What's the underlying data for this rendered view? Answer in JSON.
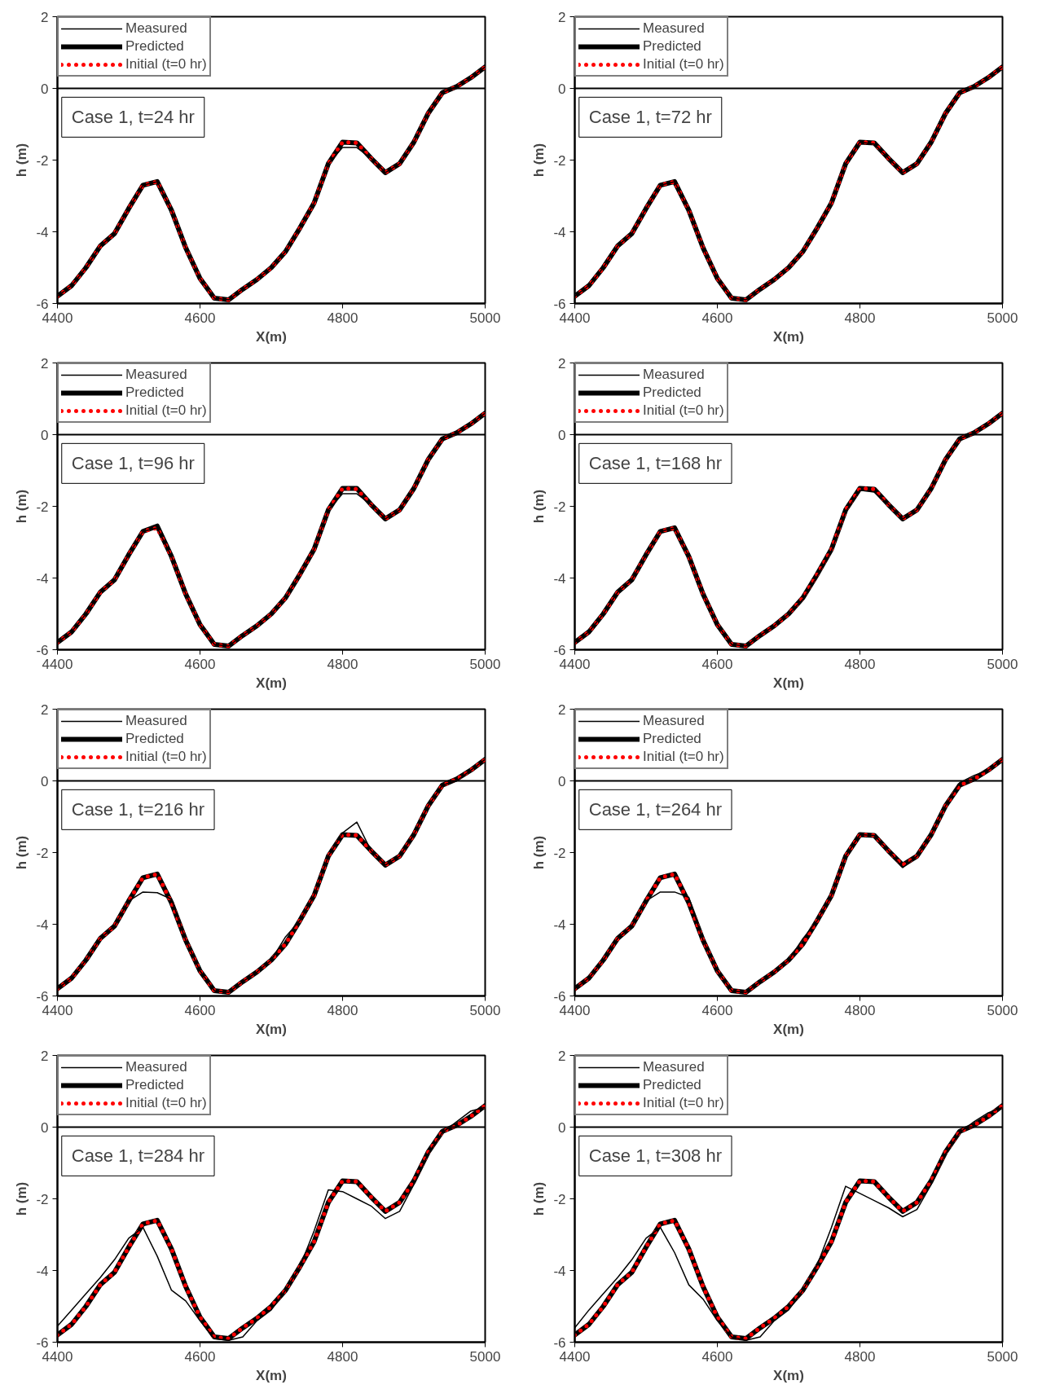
{
  "chart_data": [
    {
      "type": "line",
      "annotations": [
        "Case 1, t=24 hr"
      ],
      "xlabel": "X(m)",
      "ylabel": "h (m)",
      "xlim": [
        4400,
        5000
      ],
      "ylim": [
        -6,
        2
      ],
      "xticks": [
        4400,
        4600,
        4800,
        5000
      ],
      "yticks": [
        -6,
        -4,
        -2,
        0,
        2
      ],
      "grid": false,
      "legend": "top left",
      "ref_lines": [
        {
          "axis": "y",
          "value": 0,
          "color": "#000000"
        }
      ],
      "x": [
        4400,
        4420,
        4440,
        4460,
        4480,
        4500,
        4520,
        4540,
        4560,
        4580,
        4600,
        4620,
        4640,
        4660,
        4680,
        4700,
        4720,
        4740,
        4760,
        4780,
        4800,
        4820,
        4840,
        4860,
        4880,
        4900,
        4920,
        4940,
        4960,
        4980,
        5000
      ],
      "series": [
        {
          "name": "Measured",
          "color": "#000000",
          "line_style": "solid",
          "values": [
            -5.8,
            -5.5,
            -5.0,
            -4.4,
            -4.05,
            -3.35,
            -2.7,
            -2.6,
            -3.4,
            -4.45,
            -5.3,
            -5.85,
            -5.9,
            -5.6,
            -5.33,
            -5.0,
            -4.55,
            -3.9,
            -3.2,
            -2.1,
            -1.65,
            -1.65,
            -1.95,
            -2.35,
            -2.1,
            -1.5,
            -0.7,
            -0.12,
            0.05,
            0.3,
            0.6
          ]
        },
        {
          "name": "Predicted",
          "color": "#000000",
          "line_style": "solid",
          "values": [
            -5.8,
            -5.5,
            -5.0,
            -4.4,
            -4.05,
            -3.35,
            -2.7,
            -2.6,
            -3.4,
            -4.45,
            -5.3,
            -5.85,
            -5.9,
            -5.6,
            -5.33,
            -5.0,
            -4.55,
            -3.9,
            -3.2,
            -2.1,
            -1.5,
            -1.52,
            -1.95,
            -2.35,
            -2.1,
            -1.5,
            -0.7,
            -0.12,
            0.05,
            0.3,
            0.6
          ]
        },
        {
          "name": "Initial (t=0 hr)",
          "color": "#ff0000",
          "line_style": "dotted",
          "values": [
            -5.8,
            -5.5,
            -5.0,
            -4.4,
            -4.05,
            -3.35,
            -2.7,
            -2.6,
            -3.4,
            -4.45,
            -5.3,
            -5.85,
            -5.9,
            -5.6,
            -5.33,
            -5.0,
            -4.55,
            -3.9,
            -3.2,
            -2.1,
            -1.5,
            -1.52,
            -1.95,
            -2.35,
            -2.1,
            -1.5,
            -0.7,
            -0.12,
            0.05,
            0.3,
            0.6
          ]
        }
      ]
    },
    {
      "type": "line",
      "annotations": [
        "Case 1, t=72 hr"
      ],
      "xlabel": "X(m)",
      "ylabel": "h (m)",
      "xlim": [
        4400,
        5000
      ],
      "ylim": [
        -6,
        2
      ],
      "xticks": [
        4400,
        4600,
        4800,
        5000
      ],
      "yticks": [
        -6,
        -4,
        -2,
        0,
        2
      ],
      "grid": false,
      "legend": "top left",
      "ref_lines": [
        {
          "axis": "y",
          "value": 0,
          "color": "#000000"
        }
      ],
      "x": [
        4400,
        4420,
        4440,
        4460,
        4480,
        4500,
        4520,
        4540,
        4560,
        4580,
        4600,
        4620,
        4640,
        4660,
        4680,
        4700,
        4720,
        4740,
        4760,
        4780,
        4800,
        4820,
        4840,
        4860,
        4880,
        4900,
        4920,
        4940,
        4960,
        4980,
        5000
      ],
      "series": [
        {
          "name": "Measured",
          "color": "#000000",
          "line_style": "solid",
          "values": [
            -5.8,
            -5.5,
            -5.0,
            -4.4,
            -4.05,
            -3.35,
            -2.7,
            -2.6,
            -3.4,
            -4.45,
            -5.3,
            -5.85,
            -5.9,
            -5.6,
            -5.33,
            -5.0,
            -4.55,
            -3.9,
            -3.2,
            -2.1,
            -1.5,
            -1.55,
            -1.95,
            -2.35,
            -2.1,
            -1.5,
            -0.7,
            -0.12,
            0.05,
            0.3,
            0.6
          ]
        },
        {
          "name": "Predicted",
          "color": "#000000",
          "line_style": "solid",
          "values": [
            -5.8,
            -5.5,
            -5.0,
            -4.4,
            -4.05,
            -3.35,
            -2.7,
            -2.6,
            -3.4,
            -4.45,
            -5.3,
            -5.85,
            -5.9,
            -5.6,
            -5.33,
            -5.0,
            -4.55,
            -3.9,
            -3.2,
            -2.1,
            -1.5,
            -1.52,
            -1.95,
            -2.35,
            -2.1,
            -1.5,
            -0.7,
            -0.12,
            0.05,
            0.3,
            0.6
          ]
        },
        {
          "name": "Initial (t=0 hr)",
          "color": "#ff0000",
          "line_style": "dotted",
          "values": [
            -5.8,
            -5.5,
            -5.0,
            -4.4,
            -4.05,
            -3.35,
            -2.7,
            -2.6,
            -3.4,
            -4.45,
            -5.3,
            -5.85,
            -5.9,
            -5.6,
            -5.33,
            -5.0,
            -4.55,
            -3.9,
            -3.2,
            -2.1,
            -1.5,
            -1.52,
            -1.95,
            -2.35,
            -2.1,
            -1.5,
            -0.7,
            -0.12,
            0.05,
            0.3,
            0.6
          ]
        }
      ]
    },
    {
      "type": "line",
      "annotations": [
        "Case 1, t=96 hr"
      ],
      "xlabel": "X(m)",
      "ylabel": "h (m)",
      "xlim": [
        4400,
        5000
      ],
      "ylim": [
        -6,
        2
      ],
      "xticks": [
        4400,
        4600,
        4800,
        5000
      ],
      "yticks": [
        -6,
        -4,
        -2,
        0,
        2
      ],
      "grid": false,
      "legend": "top left",
      "ref_lines": [
        {
          "axis": "y",
          "value": 0,
          "color": "#000000"
        }
      ],
      "x": [
        4400,
        4420,
        4440,
        4460,
        4480,
        4500,
        4520,
        4540,
        4560,
        4580,
        4600,
        4620,
        4640,
        4660,
        4680,
        4700,
        4720,
        4740,
        4760,
        4780,
        4800,
        4820,
        4840,
        4860,
        4880,
        4900,
        4920,
        4940,
        4960,
        4980,
        5000
      ],
      "series": [
        {
          "name": "Measured",
          "color": "#000000",
          "line_style": "solid",
          "values": [
            -5.8,
            -5.5,
            -5.0,
            -4.4,
            -4.05,
            -3.35,
            -2.7,
            -2.6,
            -3.4,
            -4.45,
            -5.3,
            -5.85,
            -5.9,
            -5.6,
            -5.33,
            -5.0,
            -4.55,
            -3.9,
            -3.2,
            -2.1,
            -1.65,
            -1.65,
            -1.95,
            -2.35,
            -2.1,
            -1.5,
            -0.7,
            -0.12,
            0.05,
            0.3,
            0.6
          ]
        },
        {
          "name": "Predicted",
          "color": "#000000",
          "line_style": "solid",
          "values": [
            -5.8,
            -5.5,
            -5.0,
            -4.4,
            -4.05,
            -3.35,
            -2.7,
            -2.55,
            -3.4,
            -4.45,
            -5.3,
            -5.85,
            -5.9,
            -5.6,
            -5.33,
            -5.0,
            -4.55,
            -3.9,
            -3.2,
            -2.1,
            -1.5,
            -1.5,
            -1.95,
            -2.35,
            -2.1,
            -1.5,
            -0.7,
            -0.12,
            0.05,
            0.3,
            0.6
          ]
        },
        {
          "name": "Initial (t=0 hr)",
          "color": "#ff0000",
          "line_style": "dotted",
          "values": [
            -5.8,
            -5.5,
            -5.0,
            -4.4,
            -4.05,
            -3.35,
            -2.7,
            -2.6,
            -3.4,
            -4.45,
            -5.3,
            -5.85,
            -5.9,
            -5.6,
            -5.33,
            -5.0,
            -4.55,
            -3.9,
            -3.2,
            -2.1,
            -1.5,
            -1.52,
            -1.95,
            -2.35,
            -2.1,
            -1.5,
            -0.7,
            -0.12,
            0.05,
            0.3,
            0.6
          ]
        }
      ]
    },
    {
      "type": "line",
      "annotations": [
        "Case 1, t=168 hr"
      ],
      "xlabel": "X(m)",
      "ylabel": "h (m)",
      "xlim": [
        4400,
        5000
      ],
      "ylim": [
        -6,
        2
      ],
      "xticks": [
        4400,
        4600,
        4800,
        5000
      ],
      "yticks": [
        -6,
        -4,
        -2,
        0,
        2
      ],
      "grid": false,
      "legend": "top left",
      "ref_lines": [
        {
          "axis": "y",
          "value": 0,
          "color": "#000000"
        }
      ],
      "x": [
        4400,
        4420,
        4440,
        4460,
        4480,
        4500,
        4520,
        4540,
        4560,
        4580,
        4600,
        4620,
        4640,
        4660,
        4680,
        4700,
        4720,
        4740,
        4760,
        4780,
        4800,
        4820,
        4840,
        4860,
        4880,
        4900,
        4920,
        4940,
        4960,
        4980,
        5000
      ],
      "series": [
        {
          "name": "Measured",
          "color": "#000000",
          "line_style": "solid",
          "values": [
            -5.8,
            -5.5,
            -5.0,
            -4.4,
            -4.05,
            -3.35,
            -2.7,
            -2.6,
            -3.4,
            -4.45,
            -5.3,
            -5.85,
            -5.9,
            -5.6,
            -5.33,
            -5.0,
            -4.6,
            -3.95,
            -3.25,
            -2.15,
            -1.55,
            -1.6,
            -1.95,
            -2.35,
            -2.1,
            -1.5,
            -0.7,
            -0.12,
            0.05,
            0.3,
            0.6
          ]
        },
        {
          "name": "Predicted",
          "color": "#000000",
          "line_style": "solid",
          "values": [
            -5.8,
            -5.5,
            -5.0,
            -4.4,
            -4.05,
            -3.35,
            -2.7,
            -2.6,
            -3.4,
            -4.45,
            -5.3,
            -5.85,
            -5.9,
            -5.6,
            -5.33,
            -5.0,
            -4.55,
            -3.9,
            -3.2,
            -2.1,
            -1.5,
            -1.52,
            -1.95,
            -2.35,
            -2.1,
            -1.5,
            -0.7,
            -0.12,
            0.05,
            0.3,
            0.6
          ]
        },
        {
          "name": "Initial (t=0 hr)",
          "color": "#ff0000",
          "line_style": "dotted",
          "values": [
            -5.8,
            -5.5,
            -5.0,
            -4.4,
            -4.05,
            -3.35,
            -2.7,
            -2.6,
            -3.4,
            -4.45,
            -5.3,
            -5.85,
            -5.9,
            -5.6,
            -5.33,
            -5.0,
            -4.55,
            -3.9,
            -3.2,
            -2.1,
            -1.5,
            -1.52,
            -1.95,
            -2.35,
            -2.1,
            -1.5,
            -0.7,
            -0.12,
            0.05,
            0.3,
            0.6
          ]
        }
      ]
    },
    {
      "type": "line",
      "annotations": [
        "Case 1, t=216 hr"
      ],
      "xlabel": "X(m)",
      "ylabel": "h (m)",
      "xlim": [
        4400,
        5000
      ],
      "ylim": [
        -6,
        2
      ],
      "xticks": [
        4400,
        4600,
        4800,
        5000
      ],
      "yticks": [
        -6,
        -4,
        -2,
        0,
        2
      ],
      "grid": false,
      "legend": "top left",
      "ref_lines": [
        {
          "axis": "y",
          "value": 0,
          "color": "#000000"
        }
      ],
      "x": [
        4400,
        4420,
        4440,
        4460,
        4480,
        4500,
        4520,
        4540,
        4560,
        4580,
        4600,
        4620,
        4640,
        4660,
        4680,
        4700,
        4720,
        4740,
        4760,
        4780,
        4800,
        4820,
        4840,
        4860,
        4880,
        4900,
        4920,
        4940,
        4960,
        4980,
        5000
      ],
      "series": [
        {
          "name": "Measured",
          "color": "#000000",
          "line_style": "solid",
          "values": [
            -5.8,
            -5.5,
            -5.0,
            -4.4,
            -4.05,
            -3.35,
            -3.1,
            -3.12,
            -3.3,
            -4.45,
            -5.3,
            -5.85,
            -5.9,
            -5.6,
            -5.33,
            -5.0,
            -4.35,
            -3.9,
            -3.2,
            -2.1,
            -1.45,
            -1.15,
            -1.95,
            -2.35,
            -2.1,
            -1.5,
            -0.7,
            -0.12,
            0.0,
            0.3,
            0.6
          ]
        },
        {
          "name": "Predicted",
          "color": "#000000",
          "line_style": "solid",
          "values": [
            -5.8,
            -5.5,
            -5.0,
            -4.4,
            -4.05,
            -3.35,
            -2.7,
            -2.6,
            -3.4,
            -4.45,
            -5.3,
            -5.85,
            -5.9,
            -5.6,
            -5.33,
            -5.0,
            -4.55,
            -3.9,
            -3.2,
            -2.1,
            -1.5,
            -1.52,
            -1.95,
            -2.35,
            -2.1,
            -1.5,
            -0.7,
            -0.12,
            0.05,
            0.3,
            0.6
          ]
        },
        {
          "name": "Initial (t=0 hr)",
          "color": "#ff0000",
          "line_style": "dotted",
          "values": [
            -5.8,
            -5.5,
            -5.0,
            -4.4,
            -4.05,
            -3.35,
            -2.7,
            -2.6,
            -3.4,
            -4.45,
            -5.3,
            -5.85,
            -5.9,
            -5.6,
            -5.33,
            -5.0,
            -4.55,
            -3.9,
            -3.2,
            -2.1,
            -1.5,
            -1.52,
            -1.95,
            -2.35,
            -2.1,
            -1.5,
            -0.7,
            -0.12,
            0.05,
            0.3,
            0.6
          ]
        }
      ]
    },
    {
      "type": "line",
      "annotations": [
        "Case 1, t=264 hr"
      ],
      "xlabel": "X(m)",
      "ylabel": "h (m)",
      "xlim": [
        4400,
        5000
      ],
      "ylim": [
        -6,
        2
      ],
      "xticks": [
        4400,
        4600,
        4800,
        5000
      ],
      "yticks": [
        -6,
        -4,
        -2,
        0,
        2
      ],
      "grid": false,
      "legend": "top left",
      "ref_lines": [
        {
          "axis": "y",
          "value": 0,
          "color": "#000000"
        }
      ],
      "x": [
        4400,
        4420,
        4440,
        4460,
        4480,
        4500,
        4520,
        4540,
        4560,
        4580,
        4600,
        4620,
        4640,
        4660,
        4680,
        4700,
        4720,
        4740,
        4760,
        4780,
        4800,
        4820,
        4840,
        4860,
        4880,
        4900,
        4920,
        4940,
        4960,
        4980,
        5000
      ],
      "series": [
        {
          "name": "Measured",
          "color": "#000000",
          "line_style": "solid",
          "values": [
            -5.8,
            -5.5,
            -5.0,
            -4.4,
            -4.05,
            -3.35,
            -3.1,
            -3.1,
            -3.25,
            -4.45,
            -5.3,
            -5.85,
            -5.9,
            -5.6,
            -5.33,
            -5.0,
            -4.4,
            -3.9,
            -3.2,
            -2.1,
            -1.5,
            -1.52,
            -1.95,
            -2.42,
            -2.1,
            -1.5,
            -0.7,
            -0.05,
            0.15,
            0.3,
            0.6
          ]
        },
        {
          "name": "Predicted",
          "color": "#000000",
          "line_style": "solid",
          "values": [
            -5.8,
            -5.5,
            -5.0,
            -4.4,
            -4.05,
            -3.35,
            -2.7,
            -2.6,
            -3.4,
            -4.45,
            -5.3,
            -5.85,
            -5.9,
            -5.6,
            -5.33,
            -5.0,
            -4.55,
            -3.9,
            -3.2,
            -2.1,
            -1.5,
            -1.52,
            -1.95,
            -2.35,
            -2.1,
            -1.5,
            -0.7,
            -0.12,
            0.05,
            0.3,
            0.6
          ]
        },
        {
          "name": "Initial (t=0 hr)",
          "color": "#ff0000",
          "line_style": "dotted",
          "values": [
            -5.8,
            -5.5,
            -5.0,
            -4.4,
            -4.05,
            -3.35,
            -2.7,
            -2.6,
            -3.4,
            -4.45,
            -5.3,
            -5.85,
            -5.9,
            -5.6,
            -5.33,
            -5.0,
            -4.55,
            -3.9,
            -3.2,
            -2.1,
            -1.5,
            -1.52,
            -1.95,
            -2.35,
            -2.1,
            -1.5,
            -0.7,
            -0.12,
            0.05,
            0.3,
            0.6
          ]
        }
      ]
    },
    {
      "type": "line",
      "annotations": [
        "Case 1, t=284 hr"
      ],
      "xlabel": "X(m)",
      "ylabel": "h (m)",
      "xlim": [
        4400,
        5000
      ],
      "ylim": [
        -6,
        2
      ],
      "xticks": [
        4400,
        4600,
        4800,
        5000
      ],
      "yticks": [
        -6,
        -4,
        -2,
        0,
        2
      ],
      "grid": false,
      "legend": "top left",
      "ref_lines": [
        {
          "axis": "y",
          "value": 0,
          "color": "#000000"
        }
      ],
      "x": [
        4400,
        4420,
        4440,
        4460,
        4480,
        4500,
        4520,
        4540,
        4560,
        4580,
        4600,
        4620,
        4640,
        4660,
        4680,
        4700,
        4720,
        4740,
        4760,
        4780,
        4800,
        4820,
        4840,
        4860,
        4880,
        4900,
        4920,
        4940,
        4960,
        4980,
        5000
      ],
      "series": [
        {
          "name": "Measured",
          "color": "#000000",
          "line_style": "solid",
          "values": [
            -5.55,
            -5.1,
            -4.65,
            -4.2,
            -3.7,
            -3.1,
            -2.8,
            -3.6,
            -4.55,
            -4.85,
            -5.4,
            -5.9,
            -5.95,
            -5.85,
            -5.4,
            -5.1,
            -4.55,
            -3.9,
            -2.9,
            -1.75,
            -1.8,
            -2.0,
            -2.2,
            -2.55,
            -2.35,
            -1.6,
            -0.75,
            -0.15,
            0.15,
            0.45,
            0.55
          ]
        },
        {
          "name": "Predicted",
          "color": "#000000",
          "line_style": "solid",
          "values": [
            -5.8,
            -5.5,
            -5.0,
            -4.4,
            -4.05,
            -3.35,
            -2.7,
            -2.6,
            -3.4,
            -4.45,
            -5.3,
            -5.85,
            -5.9,
            -5.6,
            -5.33,
            -5.0,
            -4.55,
            -3.9,
            -3.2,
            -2.1,
            -1.5,
            -1.52,
            -1.95,
            -2.35,
            -2.1,
            -1.5,
            -0.7,
            -0.12,
            0.05,
            0.3,
            0.6
          ]
        },
        {
          "name": "Initial (t=0 hr)",
          "color": "#ff0000",
          "line_style": "dotted",
          "values": [
            -5.8,
            -5.5,
            -5.0,
            -4.4,
            -4.05,
            -3.35,
            -2.7,
            -2.6,
            -3.4,
            -4.45,
            -5.3,
            -5.85,
            -5.9,
            -5.6,
            -5.33,
            -5.0,
            -4.55,
            -3.9,
            -3.2,
            -2.1,
            -1.5,
            -1.52,
            -1.95,
            -2.35,
            -2.1,
            -1.5,
            -0.7,
            -0.12,
            0.05,
            0.3,
            0.6
          ]
        }
      ]
    },
    {
      "type": "line",
      "annotations": [
        "Case 1, t=308 hr"
      ],
      "xlabel": "X(m)",
      "ylabel": "h (m)",
      "xlim": [
        4400,
        5000
      ],
      "ylim": [
        -6,
        2
      ],
      "xticks": [
        4400,
        4600,
        4800,
        5000
      ],
      "yticks": [
        -6,
        -4,
        -2,
        0,
        2
      ],
      "grid": false,
      "legend": "top left",
      "ref_lines": [
        {
          "axis": "y",
          "value": 0,
          "color": "#000000"
        }
      ],
      "x": [
        4400,
        4420,
        4440,
        4460,
        4480,
        4500,
        4520,
        4540,
        4560,
        4580,
        4600,
        4620,
        4640,
        4660,
        4680,
        4700,
        4720,
        4740,
        4760,
        4780,
        4800,
        4820,
        4840,
        4860,
        4880,
        4900,
        4920,
        4940,
        4960,
        4980,
        5000
      ],
      "series": [
        {
          "name": "Measured",
          "color": "#000000",
          "line_style": "solid",
          "values": [
            -5.6,
            -5.1,
            -4.65,
            -4.2,
            -3.7,
            -3.1,
            -2.8,
            -3.5,
            -4.4,
            -4.8,
            -5.4,
            -5.85,
            -5.95,
            -5.85,
            -5.4,
            -5.1,
            -4.55,
            -3.85,
            -2.8,
            -1.65,
            -1.85,
            -2.05,
            -2.25,
            -2.5,
            -2.3,
            -1.6,
            -0.75,
            -0.15,
            0.15,
            0.4,
            0.55
          ]
        },
        {
          "name": "Predicted",
          "color": "#000000",
          "line_style": "solid",
          "values": [
            -5.8,
            -5.5,
            -5.0,
            -4.4,
            -4.05,
            -3.35,
            -2.7,
            -2.6,
            -3.4,
            -4.45,
            -5.3,
            -5.85,
            -5.9,
            -5.6,
            -5.33,
            -5.0,
            -4.55,
            -3.9,
            -3.2,
            -2.1,
            -1.5,
            -1.52,
            -1.95,
            -2.35,
            -2.1,
            -1.5,
            -0.7,
            -0.12,
            0.05,
            0.3,
            0.6
          ]
        },
        {
          "name": "Initial (t=0 hr)",
          "color": "#ff0000",
          "line_style": "dotted",
          "values": [
            -5.8,
            -5.5,
            -5.0,
            -4.4,
            -4.05,
            -3.35,
            -2.7,
            -2.6,
            -3.4,
            -4.45,
            -5.3,
            -5.85,
            -5.9,
            -5.6,
            -5.33,
            -5.0,
            -4.55,
            -3.9,
            -3.2,
            -2.1,
            -1.5,
            -1.52,
            -1.95,
            -2.35,
            -2.1,
            -1.5,
            -0.7,
            -0.12,
            0.05,
            0.3,
            0.6
          ]
        }
      ]
    }
  ]
}
